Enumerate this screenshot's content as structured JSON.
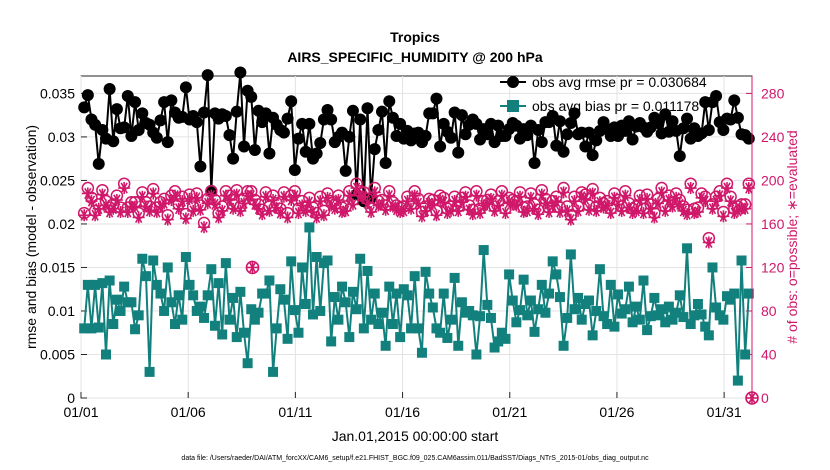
{
  "chart_data": {
    "type": "line",
    "title": "Tropics",
    "subtitle": "AIRS_SPECIFIC_HUMIDITY @ 200 hPa",
    "xlabel": "Jan.01,2015 00:00:00 start",
    "ylabel": "rmse and bias (model - observation)",
    "y2label": "# of obs: o=possible; ∗=evaluated",
    "footnote": "data file: /Users/raeder/DAI/ATM_forcXX/CAM6_setup/f.e21.FHIST_BGC.f09_025.CAM6assim.011/BadSST/Diags_NTrS_2015-01/obs_diag_output.nc",
    "x_ticks": [
      "01/01",
      "01/06",
      "01/11",
      "01/16",
      "01/21",
      "01/26",
      "01/31"
    ],
    "x_tick_days": [
      0,
      5,
      10,
      15,
      20,
      25,
      30
    ],
    "xlim": [
      0,
      31.3
    ],
    "ylim": [
      0,
      0.037
    ],
    "y_ticks": [
      "0",
      "0.005",
      "0.01",
      "0.015",
      "0.02",
      "0.025",
      "0.03",
      "0.035"
    ],
    "y_tick_values": [
      0,
      0.005,
      0.01,
      0.015,
      0.02,
      0.025,
      0.03,
      0.035
    ],
    "y2lim": [
      0,
      296
    ],
    "y2_ticks": [
      "0",
      "40",
      "80",
      "120",
      "160",
      "200",
      "240",
      "280"
    ],
    "y2_tick_values": [
      0,
      40,
      80,
      120,
      160,
      200,
      240,
      280
    ],
    "series": [
      {
        "name": "obs avg rmse pr = 0.030684",
        "axis": "left",
        "color": "#000000",
        "marker": "circle",
        "values": [
          0.0334,
          0.0348,
          0.032,
          0.0314,
          0.0269,
          0.0308,
          0.0298,
          0.0355,
          0.0295,
          0.0332,
          0.031,
          0.0311,
          0.0347,
          0.0301,
          0.034,
          0.0308,
          0.0327,
          0.0316,
          0.0314,
          0.0305,
          0.0299,
          0.0319,
          0.034,
          0.0294,
          0.0342,
          0.0328,
          0.0322,
          0.0323,
          0.0357,
          0.032,
          0.0324,
          0.0317,
          0.0266,
          0.0328,
          0.0371,
          0.0238,
          0.0327,
          0.0321,
          0.0326,
          0.0324,
          0.0302,
          0.0275,
          0.0329,
          0.0374,
          0.0289,
          0.0353,
          0.0346,
          0.0285,
          0.033,
          0.0317,
          0.0327,
          0.0281,
          0.0322,
          0.0314,
          0.0308,
          0.0305,
          0.0321,
          0.0341,
          0.0262,
          0.0298,
          0.0315,
          0.0283,
          0.0315,
          0.0275,
          0.0281,
          0.0293,
          0.032,
          0.0331,
          0.032,
          0.0294,
          0.03,
          0.0305,
          0.0261,
          0.03,
          0.033,
          0.0234,
          0.032,
          0.0226,
          0.0333,
          0.023,
          0.0286,
          0.0308,
          0.0329,
          0.027,
          0.0341,
          0.0322,
          0.0301,
          0.0315,
          0.0298,
          0.0307,
          0.0296,
          0.0304,
          0.0305,
          0.0294,
          0.0301,
          0.0327,
          0.0327,
          0.0344,
          0.0289,
          0.0315,
          0.0306,
          0.0299,
          0.0328,
          0.0282,
          0.0325,
          0.0303,
          0.0314,
          0.032,
          0.0315,
          0.0297,
          0.0309,
          0.0303,
          0.0315,
          0.0294,
          0.0313,
          0.0301,
          0.0301,
          0.0309,
          0.0316,
          0.0313,
          0.0298,
          0.0309,
          0.0302,
          0.0313,
          0.027,
          0.0308,
          0.0294,
          0.0317,
          0.0317,
          0.0324,
          0.029,
          0.0318,
          0.0283,
          0.0303,
          0.0316,
          0.0327,
          0.0303,
          0.0305,
          0.0289,
          0.0305,
          0.0279,
          0.0296,
          0.0307,
          0.0317,
          0.0309,
          0.0301,
          0.0311,
          0.0301,
          0.0313,
          0.0307,
          0.0318,
          0.0297,
          0.0312,
          0.0316,
          0.0311,
          0.0306,
          0.0311,
          0.0322,
          0.0316,
          0.0304,
          0.0326,
          0.0306,
          0.0318,
          0.0307,
          0.0278,
          0.031,
          0.0321,
          0.0298,
          0.031,
          0.0301,
          0.0304,
          0.034,
          0.0308,
          0.034,
          0.0347,
          0.0317,
          0.0308,
          0.0321,
          0.032,
          0.0342,
          0.0322,
          0.0303,
          0.0302,
          0.0298
        ]
      },
      {
        "name": "obs avg bias pr = 0.011178",
        "axis": "left",
        "color": "#12807d",
        "marker": "square",
        "values": [
          0.008,
          0.013,
          0.008,
          0.013,
          0.0081,
          0.0132,
          0.005,
          0.0135,
          0.0085,
          0.0113,
          0.01,
          0.0128,
          0.011,
          0.011,
          0.0079,
          0.0095,
          0.016,
          0.014,
          0.003,
          0.0158,
          0.013,
          0.012,
          0.01,
          0.015,
          0.011,
          0.0085,
          0.0118,
          0.009,
          0.0162,
          0.013,
          0.0118,
          0.01,
          0.0105,
          0.0092,
          0.0118,
          0.0148,
          0.0083,
          0.0132,
          0.0073,
          0.0155,
          0.009,
          0.0115,
          0.007,
          0.0122,
          0.0075,
          0.004,
          0.0102,
          0.009,
          0.0098,
          0.012,
          0.012,
          0.0135,
          0.003,
          0.008,
          0.0125,
          0.0113,
          0.0068,
          0.0157,
          0.0101,
          0.0075,
          0.015,
          0.0108,
          0.0196,
          0.0096,
          0.0162,
          0.01,
          0.0155,
          0.0158,
          0.0065,
          0.0116,
          0.009,
          0.0128,
          0.011,
          0.007,
          0.0122,
          0.0102,
          0.016,
          0.008,
          0.0146,
          0.009,
          0.012,
          0.0085,
          0.0098,
          0.006,
          0.0128,
          0.0085,
          0.012,
          0.007,
          0.0125,
          0.0118,
          0.008,
          0.014,
          0.008,
          0.0052,
          0.0145,
          0.012,
          0.0104,
          0.008,
          0.0075,
          0.012,
          0.0069,
          0.009,
          0.0138,
          0.006,
          0.011,
          0.0098,
          0.01,
          0.0095,
          0.005,
          0.0094,
          0.017,
          0.0107,
          0.0092,
          0.0058,
          0.0065,
          0.0075,
          0.0068,
          0.0142,
          0.0112,
          0.0087,
          0.0101,
          0.0136,
          0.0095,
          0.0112,
          0.0076,
          0.0102,
          0.013,
          0.0098,
          0.012,
          0.0157,
          0.0142,
          0.0116,
          0.006,
          0.0092,
          0.0165,
          0.0102,
          0.0115,
          0.009,
          0.0108,
          0.0112,
          0.0072,
          0.01,
          0.0148,
          0.0094,
          0.0085,
          0.013,
          0.0082,
          0.0119,
          0.0097,
          0.0102,
          0.0128,
          0.0087,
          0.0105,
          0.009,
          0.0135,
          0.0078,
          0.0094,
          0.0115,
          0.0095,
          0.0102,
          0.0087,
          0.0105,
          0.009,
          0.0098,
          0.0118,
          0.0093,
          0.0172,
          0.0085,
          0.0095,
          0.0108,
          0.0096,
          0.0082,
          0.0072,
          0.015,
          0.0104,
          0.0095,
          0.009,
          0.0117,
          0.0113,
          0.012,
          0.002,
          0.0158,
          0.005,
          0.012
        ]
      },
      {
        "name": "o=possible",
        "axis": "right",
        "color": "#d0186a",
        "marker": "open-circle",
        "values": [
          170,
          193,
          184,
          172,
          178,
          191,
          181,
          175,
          178,
          186,
          175,
          197,
          175,
          180,
          180,
          170,
          189,
          180,
          176,
          192,
          175,
          180,
          183,
          168,
          186,
          190,
          178,
          185,
          169,
          187,
          176,
          188,
          177,
          161,
          183,
          190,
          182,
          170,
          176,
          190,
          186,
          178,
          191,
          176,
          183,
          190,
          190,
          182,
          178,
          173,
          189,
          176,
          186,
          179,
          174,
          189,
          170,
          186,
          190,
          174,
          181,
          176,
          184,
          175,
          170,
          185,
          172,
          188,
          181,
          178,
          186,
          175,
          176,
          190,
          182,
          197,
          190,
          189,
          183,
          175,
          193,
          181,
          182,
          177,
          190,
          180,
          177,
          175,
          176,
          185,
          178,
          190,
          183,
          171,
          176,
          183,
          182,
          172,
          186,
          184,
          174,
          176,
          185,
          176,
          184,
          189,
          177,
          173,
          190,
          174,
          181,
          182,
          187,
          176,
          181,
          190,
          174,
          184,
          182,
          181,
          189,
          175,
          176,
          188,
          178,
          173,
          191,
          183,
          175,
          181,
          185,
          175,
          193,
          176,
          168,
          185,
          176,
          189,
          187,
          177,
          192,
          176,
          184,
          179,
          181,
          174,
          188,
          182,
          176,
          190,
          179,
          174,
          176,
          186,
          174,
          187,
          178,
          170,
          183,
          193,
          176,
          186,
          180,
          188,
          182,
          176,
          173,
          197,
          174,
          175,
          188,
          185,
          147,
          178,
          185,
          190,
          171,
          197,
          185,
          174,
          176,
          178,
          178,
          197
        ]
      },
      {
        "name": "∗=evaluated",
        "axis": "right",
        "color": "#d0186a",
        "marker": "asterisk",
        "values": [
          168,
          188,
          181,
          168,
          174,
          187,
          177,
          171,
          174,
          182,
          171,
          193,
          171,
          176,
          176,
          166,
          185,
          176,
          172,
          188,
          171,
          176,
          179,
          164,
          182,
          186,
          174,
          181,
          165,
          183,
          172,
          184,
          173,
          157,
          179,
          186,
          178,
          166,
          172,
          186,
          182,
          174,
          187,
          172,
          179,
          186,
          186,
          178,
          174,
          169,
          185,
          172,
          182,
          175,
          170,
          185,
          166,
          182,
          186,
          170,
          177,
          172,
          180,
          171,
          166,
          181,
          168,
          184,
          177,
          174,
          182,
          171,
          172,
          186,
          178,
          193,
          186,
          185,
          179,
          171,
          189,
          177,
          178,
          173,
          186,
          176,
          173,
          171,
          172,
          181,
          174,
          186,
          179,
          167,
          172,
          179,
          178,
          168,
          182,
          180,
          170,
          172,
          181,
          172,
          180,
          185,
          173,
          169,
          186,
          170,
          177,
          178,
          183,
          172,
          177,
          186,
          170,
          180,
          178,
          177,
          185,
          171,
          172,
          184,
          174,
          169,
          187,
          179,
          171,
          177,
          181,
          171,
          189,
          172,
          164,
          181,
          172,
          185,
          183,
          173,
          188,
          172,
          180,
          175,
          177,
          170,
          184,
          178,
          172,
          186,
          175,
          170,
          172,
          182,
          170,
          183,
          174,
          166,
          179,
          189,
          172,
          182,
          176,
          184,
          178,
          172,
          169,
          193,
          170,
          171,
          184,
          181,
          143,
          174,
          181,
          186,
          167,
          193,
          181,
          170,
          172,
          174,
          174,
          193
        ]
      }
    ],
    "special_points": [
      {
        "series": "o=possible",
        "x": 8.0,
        "y": 120
      },
      {
        "series": "∗=evaluated",
        "x": 8.0,
        "y": 120
      },
      {
        "series": "o=possible",
        "x": 31.3,
        "y": 0
      },
      {
        "series": "∗=evaluated",
        "x": 31.3,
        "y": 0
      }
    ],
    "legend_position": "top-right"
  }
}
